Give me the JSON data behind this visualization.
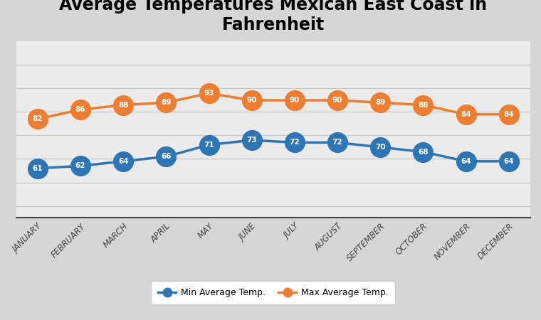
{
  "title": "Average Temperatures Mexican East Coast in\nFahrenheit",
  "months": [
    "JANUARY",
    "FEBRUARY",
    "MARCH",
    "APRIL",
    "MAY",
    "JUNE",
    "JULY",
    "AUGUST",
    "SEPTEMBER",
    "OCTOBER",
    "NOVEMBER",
    "DECEMBER"
  ],
  "min_temps": [
    61,
    62,
    64,
    66,
    71,
    73,
    72,
    72,
    70,
    68,
    64,
    64
  ],
  "max_temps": [
    82,
    86,
    88,
    89,
    93,
    90,
    90,
    90,
    89,
    88,
    84,
    84
  ],
  "min_color": "#2E75B6",
  "max_color": "#ED7D31",
  "min_label": "Min Average Temp.",
  "max_label": "Max Average Temp.",
  "bg_color": "#D6D6D6",
  "plot_bg_color": "#EBEBEB",
  "grid_color": "#C8C8C8",
  "title_fontsize": 17,
  "marker_size": 20,
  "line_width": 2.5,
  "ylim_min": 40,
  "ylim_max": 115,
  "grid_yticks": [
    45,
    55,
    65,
    75,
    85,
    95,
    105
  ]
}
